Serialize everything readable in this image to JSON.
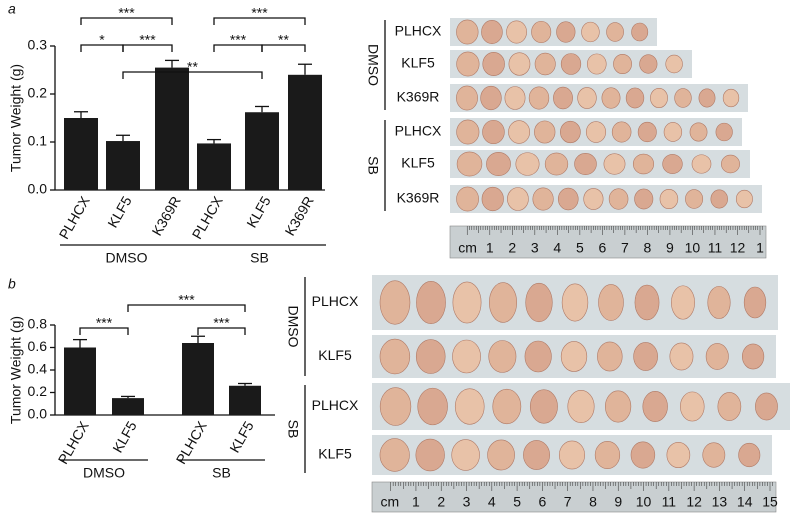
{
  "chart_data": [
    {
      "type": "bar",
      "panel": "a",
      "ylabel": "Tumor Weight (g)",
      "categories": [
        "PLHCX",
        "KLF5",
        "K369R",
        "PLHCX",
        "KLF5",
        "K369R"
      ],
      "values": [
        0.15,
        0.102,
        0.255,
        0.097,
        0.162,
        0.24
      ],
      "errors": [
        0.013,
        0.012,
        0.015,
        0.008,
        0.012,
        0.022
      ],
      "color": "#1a1a1a",
      "ylim": [
        0,
        0.3
      ],
      "yticks": [
        {
          "value": 0,
          "label": "0.0"
        },
        0.1,
        0.2,
        0.3
      ],
      "groups": [
        {
          "label": "DMSO",
          "categories": [
            0,
            2
          ]
        },
        {
          "label": "SB",
          "categories": [
            3,
            5
          ]
        }
      ],
      "brackets": [
        {
          "label": "***",
          "between": [
            0,
            2
          ]
        },
        {
          "label": "*",
          "between": [
            0,
            1
          ]
        },
        {
          "label": "***",
          "between": [
            1,
            2
          ]
        },
        {
          "label": "**",
          "between": [
            1,
            4
          ]
        },
        {
          "label": "***",
          "between": [
            3,
            5
          ]
        },
        {
          "label": "***",
          "between": [
            3,
            4
          ]
        },
        {
          "label": "**",
          "between": [
            4,
            5
          ]
        }
      ]
    },
    {
      "type": "bar",
      "panel": "b",
      "ylabel": "Tumor Weight (g)",
      "categories": [
        "PLHCX",
        "KLF5",
        "PLHCX",
        "KLF5"
      ],
      "values": [
        0.6,
        0.15,
        0.64,
        0.26
      ],
      "errors": [
        0.07,
        0.015,
        0.06,
        0.02
      ],
      "color": "#1a1a1a",
      "ylim": [
        0,
        0.8
      ],
      "yticks": [
        {
          "value": 0,
          "label": "0.0"
        },
        0.2,
        0.4,
        0.6,
        0.8
      ],
      "groups": [
        {
          "label": "DMSO",
          "categories": [
            0,
            1
          ]
        },
        {
          "label": "SB",
          "categories": [
            2,
            3
          ]
        }
      ],
      "brackets": [
        {
          "label": "***",
          "between": [
            0,
            1
          ]
        },
        {
          "label": "***",
          "between": [
            1,
            3
          ]
        },
        {
          "label": "***",
          "between": [
            2,
            3
          ]
        }
      ]
    }
  ],
  "photos": [
    {
      "groups": [
        {
          "label": "DMSO",
          "rows": [
            "PLHCX",
            "KLF5",
            "K369R"
          ]
        },
        {
          "label": "SB",
          "rows": [
            "PLHCX",
            "KLF5",
            "K369R"
          ]
        }
      ],
      "ruler": [
        "cm",
        "1",
        "2",
        "3",
        "4",
        "5",
        "6",
        "7",
        "8",
        "9",
        "10",
        "11",
        "12",
        "1"
      ]
    },
    {
      "groups": [
        {
          "label": "DMSO",
          "rows": [
            "PLHCX",
            "KLF5"
          ]
        },
        {
          "label": "SB",
          "rows": [
            "PLHCX",
            "KLF5"
          ]
        }
      ],
      "ruler": [
        "cm",
        "1",
        "2",
        "3",
        "4",
        "5",
        "6",
        "7",
        "8",
        "9",
        "10",
        "11",
        "12",
        "13",
        "14",
        "15"
      ]
    }
  ]
}
